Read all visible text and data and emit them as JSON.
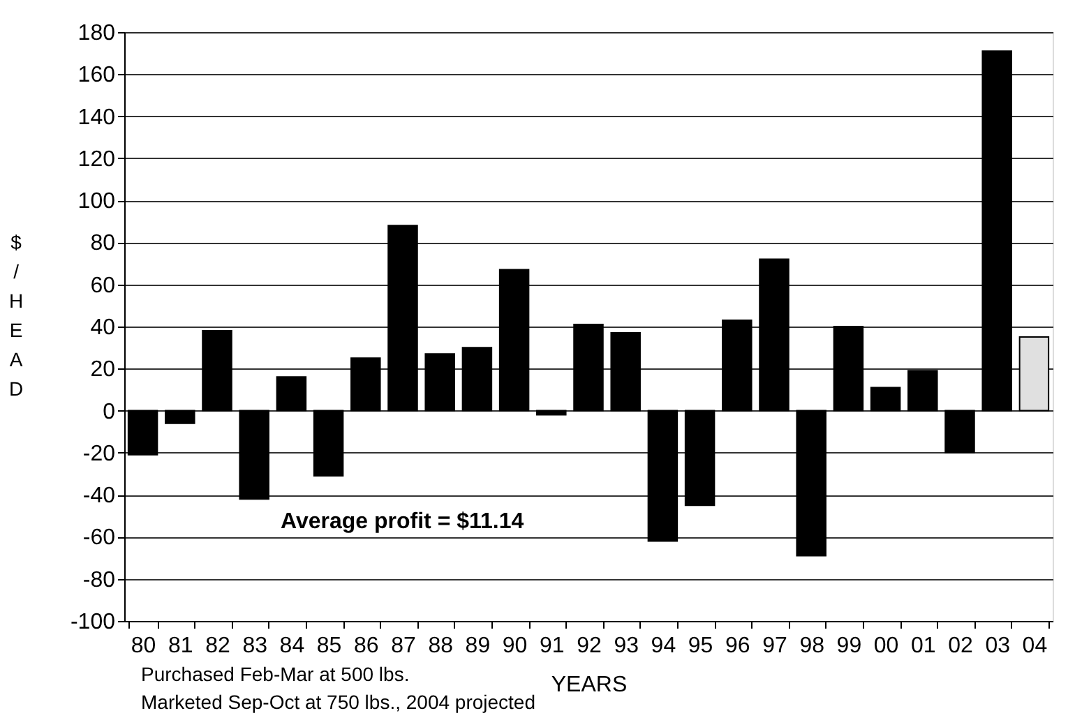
{
  "chart_data": {
    "type": "bar",
    "xlabel": "YEARS",
    "ylabel": "$/HEAD",
    "categories": [
      "80",
      "81",
      "82",
      "83",
      "84",
      "85",
      "86",
      "87",
      "88",
      "89",
      "90",
      "91",
      "92",
      "93",
      "94",
      "95",
      "96",
      "97",
      "98",
      "99",
      "00",
      "01",
      "02",
      "03",
      "04"
    ],
    "values": [
      -21,
      -6,
      38,
      -42,
      16,
      -31,
      25,
      88,
      27,
      30,
      67,
      -2,
      41,
      37,
      -62,
      -45,
      43,
      72,
      -69,
      40,
      11,
      19,
      -20,
      171,
      35
    ],
    "colors": [
      "#000000",
      "#000000",
      "#000000",
      "#000000",
      "#000000",
      "#000000",
      "#000000",
      "#000000",
      "#000000",
      "#000000",
      "#000000",
      "#000000",
      "#000000",
      "#000000",
      "#000000",
      "#000000",
      "#000000",
      "#000000",
      "#000000",
      "#000000",
      "#000000",
      "#000000",
      "#000000",
      "#000000",
      "#e0e0e0"
    ],
    "ylim": [
      -100,
      180
    ],
    "yticks": [
      -100,
      -80,
      -60,
      -40,
      -20,
      0,
      20,
      40,
      60,
      80,
      100,
      120,
      140,
      160,
      180
    ],
    "grid": "y",
    "annotations": [
      "Average profit = $11.14",
      "Purchased Feb-Mar at 500 lbs.\nMarketed Sep-Oct at 750 lbs., 2004 projected"
    ]
  }
}
